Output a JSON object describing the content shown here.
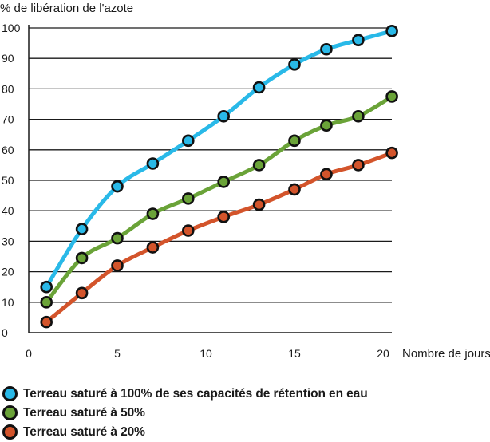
{
  "chart_data": {
    "type": "line",
    "ylabel": "% de libération de l'azote",
    "xlabel": "Nombre de jours",
    "xlim": [
      0,
      20
    ],
    "ylim": [
      0,
      100
    ],
    "x_ticks": [
      0,
      5,
      10,
      15,
      20
    ],
    "y_ticks": [
      0,
      10,
      20,
      30,
      40,
      50,
      60,
      70,
      80,
      90,
      100
    ],
    "grid": "horizontal",
    "legend_position": "bottom-left",
    "series": [
      {
        "name": "Terreau saturé à 100% de ses capacités de rétention en eau",
        "color": "#29b9e8",
        "x": [
          1,
          3,
          5,
          7,
          9,
          11,
          13,
          15,
          16.8,
          18.6,
          20.5
        ],
        "y": [
          15,
          34,
          48,
          55.5,
          63,
          71,
          80.5,
          88,
          93,
          96,
          99
        ]
      },
      {
        "name": "Terreau saturé à 50%",
        "color": "#6aa338",
        "x": [
          1,
          3,
          5,
          7,
          9,
          11,
          13,
          15,
          16.8,
          18.6,
          20.5
        ],
        "y": [
          10,
          24.5,
          31,
          39,
          44,
          49.5,
          55,
          63,
          68,
          71,
          77.5
        ]
      },
      {
        "name": "Terreau saturé à 20%",
        "color": "#d3542b",
        "x": [
          1,
          3,
          5,
          7,
          9,
          11,
          13,
          15,
          16.8,
          18.6,
          20.5
        ],
        "y": [
          3.5,
          13,
          22,
          28,
          33.5,
          38,
          42,
          47,
          52,
          55,
          59
        ]
      }
    ]
  }
}
